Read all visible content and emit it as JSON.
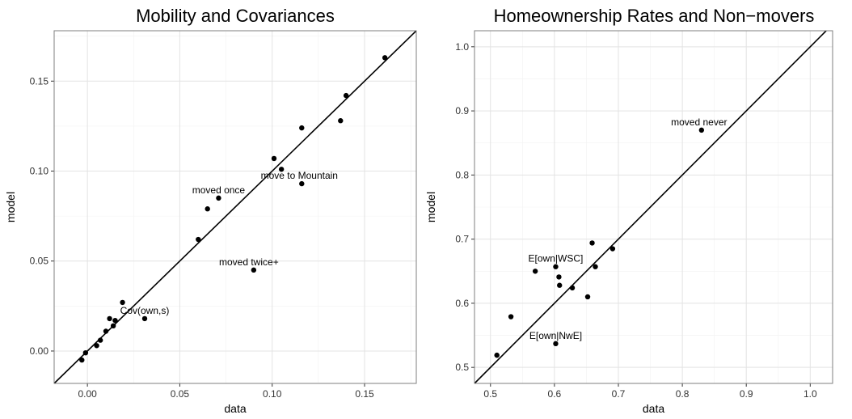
{
  "chart_data": [
    {
      "type": "scatter",
      "title": "Mobility and Covariances",
      "xlabel": "data",
      "ylabel": "model",
      "xlim": [
        -0.018,
        0.178
      ],
      "ylim": [
        -0.018,
        0.178
      ],
      "xticks": [
        0.0,
        0.05,
        0.1,
        0.15
      ],
      "xtick_labels": [
        "0.00",
        "0.05",
        "0.10",
        "0.15"
      ],
      "yticks": [
        0.0,
        0.05,
        0.1,
        0.15
      ],
      "ytick_labels": [
        "0.00",
        "0.05",
        "0.10",
        "0.15"
      ],
      "grid": true,
      "reference_line": "y = x",
      "points": [
        {
          "x": -0.003,
          "y": -0.005,
          "label": ""
        },
        {
          "x": -0.001,
          "y": -0.001,
          "label": ""
        },
        {
          "x": 0.005,
          "y": 0.003,
          "label": ""
        },
        {
          "x": 0.007,
          "y": 0.006,
          "label": ""
        },
        {
          "x": 0.01,
          "y": 0.011,
          "label": ""
        },
        {
          "x": 0.012,
          "y": 0.018,
          "label": ""
        },
        {
          "x": 0.014,
          "y": 0.014,
          "label": ""
        },
        {
          "x": 0.015,
          "y": 0.017,
          "label": ""
        },
        {
          "x": 0.019,
          "y": 0.027,
          "label": ""
        },
        {
          "x": 0.031,
          "y": 0.018,
          "label": "Cov(own,s)"
        },
        {
          "x": 0.06,
          "y": 0.062,
          "label": ""
        },
        {
          "x": 0.065,
          "y": 0.079,
          "label": ""
        },
        {
          "x": 0.071,
          "y": 0.085,
          "label": "moved once"
        },
        {
          "x": 0.09,
          "y": 0.045,
          "label": "moved twice+"
        },
        {
          "x": 0.101,
          "y": 0.107,
          "label": ""
        },
        {
          "x": 0.105,
          "y": 0.101,
          "label": ""
        },
        {
          "x": 0.116,
          "y": 0.093,
          "label": "move to Mountain"
        },
        {
          "x": 0.116,
          "y": 0.124,
          "label": ""
        },
        {
          "x": 0.137,
          "y": 0.128,
          "label": ""
        },
        {
          "x": 0.14,
          "y": 0.142,
          "label": ""
        },
        {
          "x": 0.161,
          "y": 0.163,
          "label": ""
        }
      ]
    },
    {
      "type": "scatter",
      "title": "Homeownership Rates and Non−movers",
      "xlabel": "data",
      "ylabel": "model",
      "xlim": [
        0.475,
        1.035
      ],
      "ylim": [
        0.475,
        1.025
      ],
      "xticks": [
        0.5,
        0.6,
        0.7,
        0.8,
        0.9,
        1.0
      ],
      "xtick_labels": [
        "0.5",
        "0.6",
        "0.7",
        "0.8",
        "0.9",
        "1.0"
      ],
      "yticks": [
        0.5,
        0.6,
        0.7,
        0.8,
        0.9,
        1.0
      ],
      "ytick_labels": [
        "0.5",
        "0.6",
        "0.7",
        "0.8",
        "0.9",
        "1.0"
      ],
      "grid": true,
      "reference_line": "y = x",
      "points": [
        {
          "x": 0.51,
          "y": 0.519,
          "label": ""
        },
        {
          "x": 0.532,
          "y": 0.579,
          "label": ""
        },
        {
          "x": 0.57,
          "y": 0.65,
          "label": ""
        },
        {
          "x": 0.602,
          "y": 0.537,
          "label": "E[own|NwE]"
        },
        {
          "x": 0.602,
          "y": 0.657,
          "label": "E[own|WSC]"
        },
        {
          "x": 0.607,
          "y": 0.641,
          "label": ""
        },
        {
          "x": 0.608,
          "y": 0.628,
          "label": ""
        },
        {
          "x": 0.628,
          "y": 0.624,
          "label": ""
        },
        {
          "x": 0.652,
          "y": 0.61,
          "label": ""
        },
        {
          "x": 0.659,
          "y": 0.694,
          "label": ""
        },
        {
          "x": 0.664,
          "y": 0.657,
          "label": ""
        },
        {
          "x": 0.691,
          "y": 0.685,
          "label": ""
        },
        {
          "x": 0.83,
          "y": 0.87,
          "label": "moved never"
        }
      ]
    }
  ]
}
